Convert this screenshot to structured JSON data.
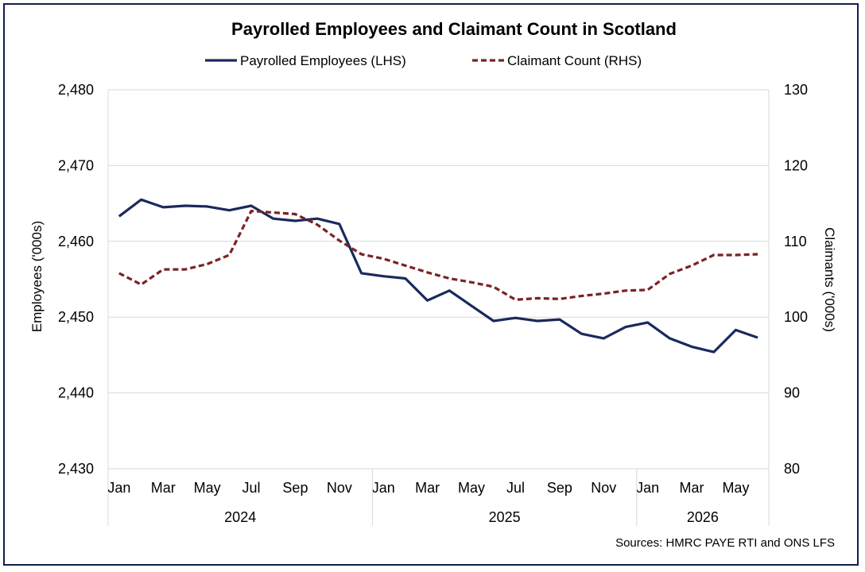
{
  "chart_data": {
    "type": "line",
    "title": "Payrolled Employees and Claimant Count in Scotland",
    "source": "Sources: HMRC PAYE RTI and ONS LFS",
    "ylabel_left": "Employees ('000s)",
    "ylabel_right": "Claimants ('000s)",
    "ylim_left": [
      2430,
      2480
    ],
    "ylim_right": [
      80,
      130
    ],
    "yticks_left": [
      "2,430",
      "2,440",
      "2,450",
      "2,460",
      "2,470",
      "2,480"
    ],
    "yticks_right": [
      "80",
      "90",
      "100",
      "110",
      "120",
      "130"
    ],
    "x": [
      "Jan 2024",
      "Feb 2024",
      "Mar 2024",
      "Apr 2024",
      "May 2024",
      "Jun 2024",
      "Jul 2024",
      "Aug 2024",
      "Sep 2024",
      "Oct 2024",
      "Nov 2024",
      "Dec 2024",
      "Jan 2025",
      "Feb 2025",
      "Mar 2025",
      "Apr 2025",
      "May 2025",
      "Jun 2025",
      "Jul 2025",
      "Aug 2025",
      "Sep 2025",
      "Oct 2025",
      "Nov 2025",
      "Dec 2025",
      "Jan 2026",
      "Feb 2026",
      "Mar 2026",
      "Apr 2026",
      "May 2026",
      "Jun 2026"
    ],
    "month_labels": [
      "Jan",
      "",
      "Mar",
      "",
      "May",
      "",
      "Jul",
      "",
      "Sep",
      "",
      "Nov",
      "",
      "Jan",
      "",
      "Mar",
      "",
      "May",
      "",
      "Jul",
      "",
      "Sep",
      "",
      "Nov",
      "",
      "Jan",
      "",
      "Mar",
      "",
      "May",
      ""
    ],
    "year_groups": [
      {
        "label": "2024",
        "start": 0,
        "end": 11
      },
      {
        "label": "2025",
        "start": 12,
        "end": 23
      },
      {
        "label": "2026",
        "start": 24,
        "end": 29
      }
    ],
    "grid": true,
    "legend_position": "top",
    "series": [
      {
        "name": "Payrolled Employees (LHS)",
        "axis": "left",
        "color": "#1a2a5e",
        "style": "solid",
        "values": [
          2463.3,
          2465.5,
          2464.5,
          2464.7,
          2464.6,
          2464.1,
          2464.7,
          2463.0,
          2462.7,
          2463.0,
          2462.3,
          2455.8,
          2455.4,
          2455.1,
          2452.2,
          2453.5,
          2451.5,
          2449.5,
          2449.9,
          2449.5,
          2449.7,
          2447.8,
          2447.2,
          2448.7,
          2449.3,
          2447.2,
          2446.1,
          2445.4,
          2448.3,
          2447.3
        ]
      },
      {
        "name": "Claimant Count (RHS)",
        "axis": "right",
        "color": "#7b2323",
        "style": "dashed",
        "values": [
          105.8,
          104.3,
          106.3,
          106.3,
          107.0,
          108.2,
          114.0,
          113.8,
          113.6,
          112.2,
          110.1,
          108.3,
          107.7,
          106.8,
          105.9,
          105.1,
          104.6,
          104.0,
          102.3,
          102.5,
          102.4,
          102.8,
          103.1,
          103.5,
          103.6,
          105.7,
          106.8,
          108.2,
          108.2,
          108.3
        ]
      }
    ]
  }
}
